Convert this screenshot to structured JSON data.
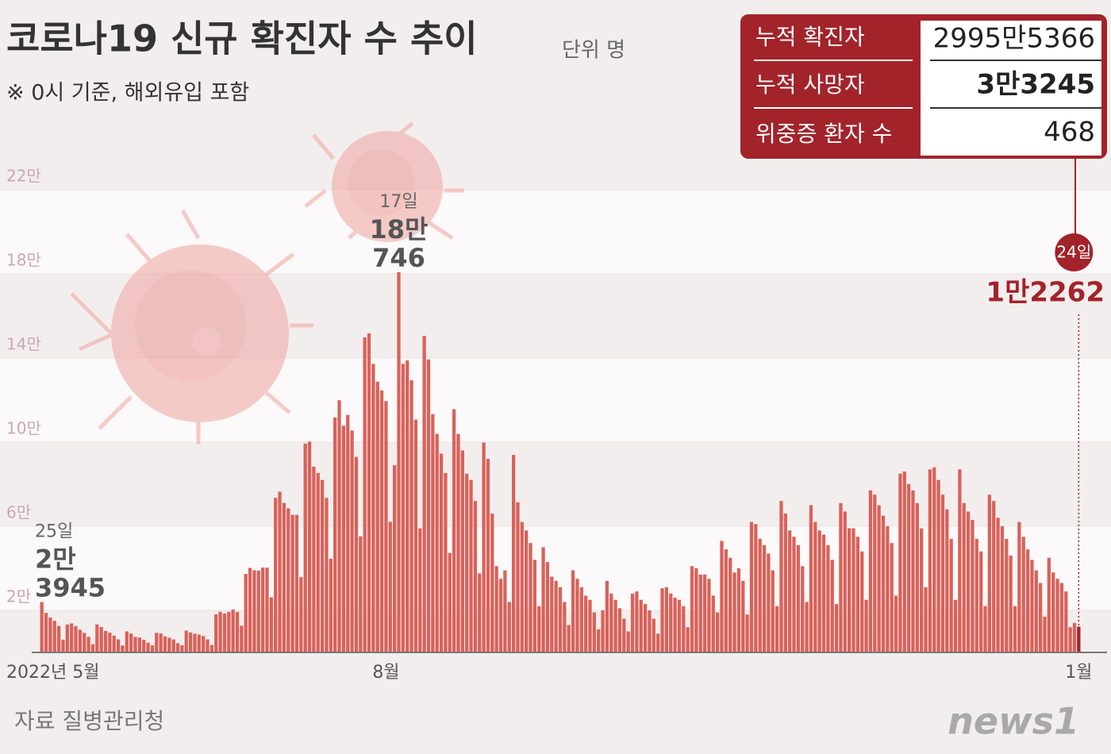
{
  "chart_data": {
    "type": "bar",
    "title": "코로나19 신규 확진자 수 추이",
    "unit": "단위 명",
    "note": "※ 0시 기준, 해외유입 포함",
    "source": "자료 질병관리청",
    "logo": "news1",
    "summary": [
      {
        "label": "누적 확진자",
        "value": "2995만5366"
      },
      {
        "label": "누적 사망자",
        "value": "3만3245"
      },
      {
        "label": "위중증 환자 수",
        "value": "468"
      }
    ],
    "color": "#d8625a",
    "highlight_color": "#a3232a",
    "ylim": [
      0,
      230000
    ],
    "yticks": [
      {
        "value": 20000,
        "label": "2만"
      },
      {
        "value": 60000,
        "label": "6만"
      },
      {
        "value": 100000,
        "label": "10만"
      },
      {
        "value": 140000,
        "label": "14만"
      },
      {
        "value": 180000,
        "label": "18만"
      },
      {
        "value": 220000,
        "label": "22만"
      }
    ],
    "grid": true,
    "categories": [
      "2022년 5월",
      null,
      null,
      null,
      null,
      null,
      null,
      null,
      null,
      null,
      null,
      null,
      null,
      null,
      null,
      null,
      null,
      null,
      null,
      null,
      null,
      null,
      null,
      null,
      null,
      null,
      null,
      null,
      null,
      null,
      null,
      null,
      null,
      null,
      null,
      null,
      null,
      null,
      null,
      null,
      null,
      null,
      null,
      null,
      null,
      null,
      null,
      null,
      null,
      null,
      null,
      null,
      null,
      null,
      null,
      null,
      null,
      null,
      null,
      null,
      null,
      null,
      null,
      null,
      null,
      null,
      null,
      null,
      null,
      null,
      null,
      null,
      null,
      null,
      null,
      null,
      null,
      null,
      null,
      null,
      null,
      "8월",
      null,
      null,
      null,
      null,
      null,
      null,
      null,
      null,
      null,
      null,
      null,
      null,
      null,
      null,
      null,
      null,
      null,
      null,
      null,
      null,
      null,
      null,
      null,
      null,
      null,
      null,
      null,
      null,
      null,
      null,
      null,
      null,
      null,
      null,
      null,
      null,
      null,
      null,
      null,
      null,
      null,
      null,
      null,
      null,
      null,
      null,
      null,
      null,
      null,
      null,
      null,
      null,
      null,
      null,
      null,
      null,
      null,
      null,
      null,
      null,
      null,
      null,
      null,
      null,
      null,
      null,
      null,
      null,
      null,
      null,
      null,
      null,
      null,
      null,
      null,
      null,
      null,
      null,
      null,
      null,
      null,
      null,
      null,
      null,
      null,
      null,
      null,
      null,
      null,
      null,
      null,
      null,
      null,
      null,
      null,
      null,
      null,
      null,
      null,
      null,
      null,
      null,
      null,
      null,
      null,
      null,
      null,
      null,
      null,
      null,
      null,
      null,
      null,
      null,
      null,
      null,
      null,
      null,
      null,
      null,
      null,
      null,
      null,
      null,
      null,
      null,
      null,
      null,
      null,
      null,
      null,
      null,
      null,
      null,
      null,
      null,
      null,
      null,
      null,
      null,
      null,
      null,
      null,
      null,
      null,
      null,
      null,
      null,
      null,
      null,
      null,
      null,
      null,
      null,
      null,
      null,
      null,
      null,
      null,
      null,
      null,
      null,
      "1월"
    ],
    "values": [
      23945,
      18816,
      16584,
      15000,
      12600,
      6100,
      13300,
      13800,
      12500,
      10800,
      9300,
      7400,
      3900,
      13300,
      12100,
      10200,
      9400,
      8000,
      6200,
      3300,
      10000,
      9000,
      7400,
      7100,
      6000,
      4600,
      3400,
      9300,
      9000,
      7600,
      7000,
      6200,
      4400,
      3400,
      10400,
      9500,
      8900,
      8500,
      7800,
      6200,
      3500,
      18100,
      19300,
      18500,
      19300,
      20400,
      19300,
      12700,
      37300,
      40200,
      39100,
      38900,
      40300,
      40300,
      26200,
      73500,
      76400,
      71100,
      68500,
      65400,
      65400,
      35800,
      99300,
      100200,
      88300,
      85300,
      82000,
      73500,
      44600,
      111700,
      119900,
      107800,
      112900,
      105500,
      93000,
      55200,
      149800,
      151700,
      137200,
      128700,
      124500,
      119500,
      62100,
      89000,
      180746,
      137200,
      138800,
      129400,
      110700,
      59000,
      150500,
      139300,
      113300,
      103900,
      94500,
      85300,
      47300,
      115600,
      103900,
      96000,
      85000,
      82000,
      72000,
      37500,
      99800,
      92000,
      66000,
      41000,
      35000,
      39000,
      24000,
      93900,
      71400,
      62000,
      58000,
      52000,
      44000,
      22000,
      50000,
      43000,
      36000,
      34000,
      31000,
      24000,
      13000,
      39000,
      35000,
      31000,
      27000,
      25000,
      19000,
      11000,
      20000,
      34000,
      28000,
      25000,
      21000,
      16000,
      10000,
      28000,
      29000,
      25000,
      23000,
      20000,
      16000,
      8900,
      30500,
      31000,
      28000,
      26000,
      25000,
      22000,
      12000,
      41000,
      40000,
      37000,
      37000,
      35000,
      27000,
      19000,
      53000,
      49000,
      45000,
      38000,
      40000,
      34000,
      18000,
      62000,
      61000,
      54000,
      51000,
      47000,
      39000,
      22000,
      72000,
      66000,
      58000,
      55000,
      51000,
      41000,
      24000,
      70000,
      62000,
      58000,
      56000,
      51000,
      44000,
      23000,
      71000,
      67000,
      59000,
      59000,
      55000,
      48000,
      25000,
      77000,
      75000,
      70000,
      65000,
      60000,
      52000,
      27000,
      85000,
      86000,
      80000,
      77000,
      71000,
      59000,
      31000,
      87000,
      88000,
      82000,
      75000,
      68000,
      54000,
      25000,
      87000,
      71000,
      67000,
      63000,
      54000,
      48000,
      22000,
      75000,
      72000,
      64000,
      60000,
      54000,
      46000,
      22000,
      62000,
      55000,
      49000,
      44000,
      39000,
      33000,
      17000,
      45000,
      38000,
      35000,
      33000,
      29000,
      12000,
      14000,
      12262
    ],
    "date_labels": [
      "25일",
      null,
      null,
      null,
      null,
      null,
      null,
      null,
      null,
      null,
      null,
      null,
      null,
      null,
      null,
      null,
      null,
      null,
      null,
      null,
      null,
      null,
      null,
      null,
      null,
      null,
      null,
      null,
      null,
      null,
      null,
      null,
      null,
      null,
      null,
      null,
      null,
      null,
      null,
      null,
      null,
      null,
      null,
      null,
      null,
      null,
      null,
      null,
      null,
      null,
      null,
      null,
      null,
      null,
      null,
      null,
      null,
      null,
      null,
      null,
      null,
      null,
      null,
      null,
      null,
      null,
      null,
      null,
      null,
      null,
      null,
      null,
      null,
      null,
      null,
      null,
      null,
      null,
      null,
      null,
      null,
      null,
      null,
      null,
      "17일",
      null,
      null,
      null,
      null,
      null,
      null,
      null,
      null,
      null,
      null,
      null,
      null,
      null,
      null,
      null,
      null,
      null,
      null,
      null,
      null,
      null,
      null,
      null,
      null,
      null,
      null,
      null,
      null,
      null,
      null,
      null,
      null,
      null,
      null,
      null,
      null,
      null,
      null,
      null,
      null,
      null,
      null,
      null,
      null,
      null,
      null,
      null,
      null,
      null,
      null,
      null,
      null,
      null,
      null,
      null,
      null,
      null,
      null,
      null,
      null,
      null,
      null,
      null,
      null,
      null,
      null,
      null,
      null,
      null,
      null,
      null,
      null,
      null,
      null,
      null,
      null,
      null,
      null,
      null,
      null,
      null,
      null,
      null,
      null,
      null,
      null,
      null,
      null,
      null,
      null,
      null,
      null,
      null,
      null,
      null,
      null,
      null,
      null,
      null,
      null,
      null,
      null,
      null,
      null,
      null,
      null,
      null,
      null,
      null,
      null,
      null,
      null,
      null,
      null,
      null,
      null,
      null,
      null,
      null,
      null,
      null,
      null,
      null,
      null,
      null,
      null,
      null,
      null,
      null,
      null,
      null,
      null,
      null,
      null,
      null,
      null,
      null,
      null,
      null,
      null,
      null,
      null,
      null,
      null,
      null,
      null,
      null,
      null,
      null,
      null,
      null,
      null,
      null,
      null,
      null,
      null,
      null,
      null,
      null,
      "24일"
    ],
    "value_labels": [
      [
        "2만",
        "3945"
      ],
      null,
      null,
      null,
      null,
      null,
      null,
      null,
      null,
      null,
      null,
      null,
      null,
      null,
      null,
      null,
      null,
      null,
      null,
      null,
      null,
      null,
      null,
      null,
      null,
      null,
      null,
      null,
      null,
      null,
      null,
      null,
      null,
      null,
      null,
      null,
      null,
      null,
      null,
      null,
      null,
      null,
      null,
      null,
      null,
      null,
      null,
      null,
      null,
      null,
      null,
      null,
      null,
      null,
      null,
      null,
      null,
      null,
      null,
      null,
      null,
      null,
      null,
      null,
      null,
      null,
      null,
      null,
      null,
      null,
      null,
      null,
      null,
      null,
      null,
      null,
      null,
      null,
      null,
      null,
      null,
      null,
      null,
      null,
      [
        "18만",
        "746"
      ],
      null,
      null,
      null,
      null,
      null,
      null,
      null,
      null,
      null,
      null,
      null,
      null,
      null,
      null,
      null,
      null,
      null,
      null,
      null,
      null,
      null,
      null,
      null,
      null,
      null,
      null,
      null,
      null,
      null,
      null,
      null,
      null,
      null,
      null,
      null,
      null,
      null,
      null,
      null,
      null,
      null,
      null,
      null,
      null,
      null,
      null,
      null,
      null,
      null,
      null,
      null,
      null,
      null,
      null,
      null,
      null,
      null,
      null,
      null,
      null,
      null,
      null,
      null,
      null,
      null,
      null,
      null,
      null,
      null,
      null,
      null,
      null,
      null,
      null,
      null,
      null,
      null,
      null,
      null,
      null,
      null,
      null,
      null,
      null,
      null,
      null,
      null,
      null,
      null,
      null,
      null,
      null,
      null,
      null,
      null,
      null,
      null,
      null,
      null,
      null,
      null,
      null,
      null,
      null,
      null,
      null,
      null,
      null,
      null,
      null,
      null,
      null,
      null,
      null,
      null,
      null,
      null,
      null,
      null,
      null,
      null,
      null,
      null,
      null,
      null,
      null,
      null,
      null,
      null,
      null,
      null,
      null,
      null,
      null,
      null,
      null,
      null,
      null,
      null,
      null,
      null,
      null,
      null,
      null,
      null,
      null,
      null,
      null,
      null,
      null,
      null,
      null,
      null,
      null,
      null,
      null,
      null,
      null,
      null,
      [
        "1만2262"
      ]
    ]
  }
}
